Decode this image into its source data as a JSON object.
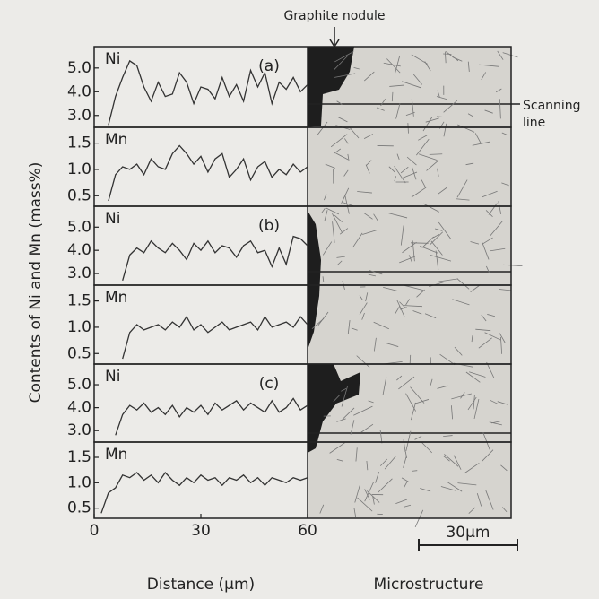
{
  "figure": {
    "ylabel": "Contents of Ni and Mn (mass%)",
    "graphite": "Graphite nodule",
    "scanning_line": [
      "Scanning",
      "line"
    ],
    "micro_label": "Microstructure",
    "scale_bar": "30μm"
  },
  "chart_data": [
    {
      "type": "line",
      "panel": "(a)",
      "label": "Ni",
      "xlim": [
        0,
        60
      ],
      "ylim": [
        2.5,
        5.9
      ],
      "yticks": [
        {
          "value": 5,
          "label": "5.0"
        },
        {
          "value": 4,
          "label": "4.0"
        },
        {
          "value": 3,
          "label": "3.0"
        }
      ],
      "x": [
        0,
        2,
        4,
        6,
        8,
        10,
        12,
        14,
        16,
        18,
        20,
        22,
        24,
        26,
        28,
        30,
        32,
        34,
        36,
        38,
        40,
        42,
        44,
        46,
        48,
        50,
        52,
        54,
        56,
        58,
        60
      ],
      "series": [
        {
          "color": "#333333",
          "values": [
            null,
            null,
            2.6,
            3.8,
            4.6,
            5.3,
            5.1,
            4.2,
            3.6,
            4.4,
            3.8,
            3.9,
            4.8,
            4.4,
            3.5,
            4.2,
            4.1,
            3.7,
            4.6,
            3.8,
            4.3,
            3.6,
            4.9,
            4.2,
            4.8,
            3.5,
            4.4,
            4.1,
            4.6,
            4.0,
            4.3
          ]
        }
      ]
    },
    {
      "type": "line",
      "label": "Mn",
      "xlim": [
        0,
        60
      ],
      "ylim": [
        0.3,
        1.8
      ],
      "yticks": [
        1.5,
        {
          "value": 1,
          "label": "1.0"
        },
        0.5
      ],
      "x": [
        0,
        2,
        4,
        6,
        8,
        10,
        12,
        14,
        16,
        18,
        20,
        22,
        24,
        26,
        28,
        30,
        32,
        34,
        36,
        38,
        40,
        42,
        44,
        46,
        48,
        50,
        52,
        54,
        56,
        58,
        60
      ],
      "series": [
        {
          "color": "#333333",
          "values": [
            null,
            null,
            0.4,
            0.9,
            1.05,
            1.0,
            1.1,
            0.9,
            1.2,
            1.05,
            1.0,
            1.3,
            1.45,
            1.3,
            1.1,
            1.25,
            0.95,
            1.2,
            1.3,
            0.85,
            1.0,
            1.2,
            0.8,
            1.05,
            1.15,
            0.85,
            1.0,
            0.9,
            1.1,
            0.95,
            1.05
          ]
        }
      ]
    },
    {
      "type": "line",
      "panel": "(b)",
      "label": "Ni",
      "xlim": [
        0,
        60
      ],
      "ylim": [
        2.5,
        5.9
      ],
      "yticks": [
        {
          "value": 5,
          "label": "5.0"
        },
        {
          "value": 4,
          "label": "4.0"
        },
        {
          "value": 3,
          "label": "3.0"
        }
      ],
      "x": [
        0,
        2,
        4,
        6,
        8,
        10,
        12,
        14,
        16,
        18,
        20,
        22,
        24,
        26,
        28,
        30,
        32,
        34,
        36,
        38,
        40,
        42,
        44,
        46,
        48,
        50,
        52,
        54,
        56,
        58,
        60
      ],
      "series": [
        {
          "color": "#333333",
          "values": [
            null,
            null,
            null,
            null,
            2.7,
            3.8,
            4.1,
            3.9,
            4.4,
            4.1,
            3.9,
            4.3,
            4.0,
            3.6,
            4.3,
            4.0,
            4.4,
            3.9,
            4.2,
            4.1,
            3.7,
            4.2,
            4.4,
            3.9,
            4.0,
            3.3,
            4.1,
            3.4,
            4.6,
            4.5,
            4.2
          ]
        }
      ]
    },
    {
      "type": "line",
      "label": "Mn",
      "xlim": [
        0,
        60
      ],
      "ylim": [
        0.3,
        1.8
      ],
      "yticks": [
        1.5,
        {
          "value": 1,
          "label": "1.0"
        },
        0.5
      ],
      "x": [
        0,
        2,
        4,
        6,
        8,
        10,
        12,
        14,
        16,
        18,
        20,
        22,
        24,
        26,
        28,
        30,
        32,
        34,
        36,
        38,
        40,
        42,
        44,
        46,
        48,
        50,
        52,
        54,
        56,
        58,
        60
      ],
      "series": [
        {
          "color": "#333333",
          "values": [
            null,
            null,
            null,
            null,
            0.4,
            0.9,
            1.05,
            0.95,
            1.0,
            1.05,
            0.95,
            1.1,
            1.0,
            1.2,
            0.95,
            1.05,
            0.9,
            1.0,
            1.1,
            0.95,
            1.0,
            1.05,
            1.1,
            0.95,
            1.2,
            1.0,
            1.05,
            1.1,
            1.0,
            1.2,
            1.05
          ]
        }
      ]
    },
    {
      "type": "line",
      "panel": "(c)",
      "label": "Ni",
      "xlim": [
        0,
        60
      ],
      "ylim": [
        2.5,
        5.9
      ],
      "yticks": [
        {
          "value": 5,
          "label": "5.0"
        },
        {
          "value": 4,
          "label": "4.0"
        },
        {
          "value": 3,
          "label": "3.0"
        }
      ],
      "x": [
        0,
        2,
        4,
        6,
        8,
        10,
        12,
        14,
        16,
        18,
        20,
        22,
        24,
        26,
        28,
        30,
        32,
        34,
        36,
        38,
        40,
        42,
        44,
        46,
        48,
        50,
        52,
        54,
        56,
        58,
        60
      ],
      "series": [
        {
          "color": "#333333",
          "values": [
            null,
            null,
            null,
            2.8,
            3.7,
            4.1,
            3.9,
            4.2,
            3.8,
            4.0,
            3.7,
            4.1,
            3.6,
            4.0,
            3.8,
            4.1,
            3.7,
            4.2,
            3.9,
            4.1,
            4.3,
            3.9,
            4.2,
            4.0,
            3.8,
            4.3,
            3.8,
            4.0,
            4.4,
            3.9,
            4.1
          ]
        }
      ]
    },
    {
      "type": "line",
      "label": "Mn",
      "xlim": [
        0,
        60
      ],
      "ylim": [
        0.3,
        1.8
      ],
      "yticks": [
        1.5,
        {
          "value": 1,
          "label": "1.0"
        },
        0.5
      ],
      "xticks": [
        0,
        30,
        60
      ],
      "xlabel": "Distance (μm)",
      "x": [
        0,
        2,
        4,
        6,
        8,
        10,
        12,
        14,
        16,
        18,
        20,
        22,
        24,
        26,
        28,
        30,
        32,
        34,
        36,
        38,
        40,
        42,
        44,
        46,
        48,
        50,
        52,
        54,
        56,
        58,
        60
      ],
      "series": [
        {
          "color": "#333333",
          "values": [
            null,
            0.4,
            0.8,
            0.9,
            1.15,
            1.1,
            1.2,
            1.05,
            1.15,
            1.0,
            1.2,
            1.05,
            0.95,
            1.1,
            1.0,
            1.15,
            1.05,
            1.1,
            0.95,
            1.1,
            1.05,
            1.15,
            1.0,
            1.1,
            0.95,
            1.1,
            1.05,
            1.0,
            1.1,
            1.05,
            1.1
          ]
        }
      ]
    }
  ]
}
